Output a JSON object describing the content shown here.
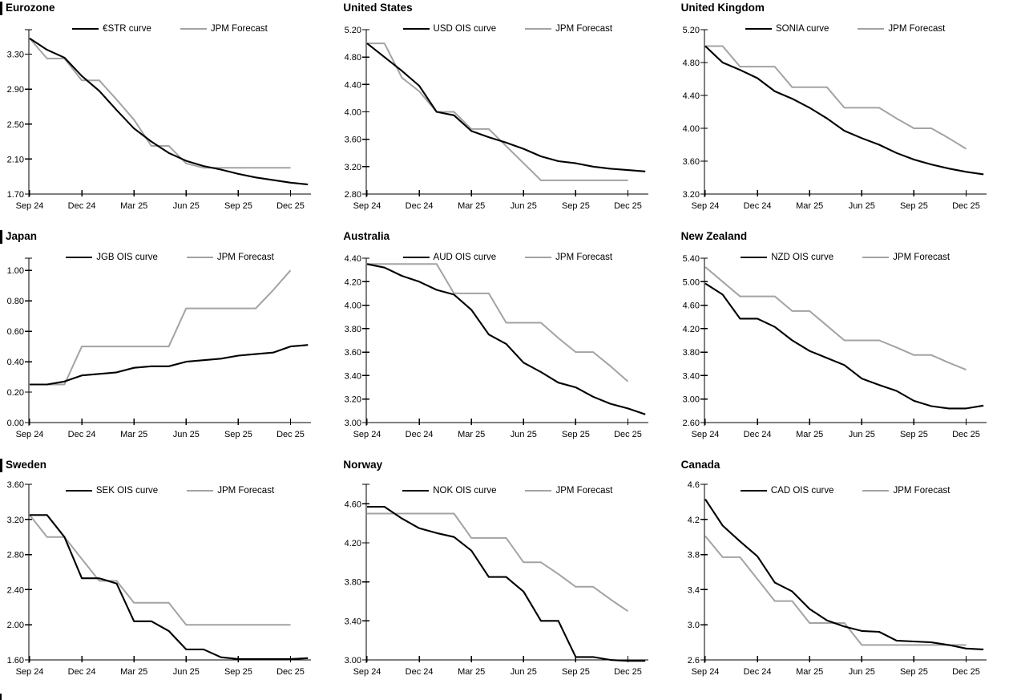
{
  "chart_data": {
    "type": "line",
    "x_tick_labels": [
      "Sep 24",
      "Dec 24",
      "Mar 25",
      "Jun 25",
      "Sep 25",
      "Dec 25"
    ],
    "forecast_label": "JPM Forecast",
    "colors": {
      "ois_line": "#000000",
      "forecast_line": "#a3a3a3",
      "axis": "#000000"
    },
    "legend_position": "top-center",
    "grid": "off",
    "panels": [
      {
        "title": "Eurozone",
        "ois_label": "€STR curve",
        "y_ticks": [
          1.7,
          2.1,
          2.5,
          2.9,
          3.3
        ],
        "y_decimals": 2,
        "ylim": [
          1.7,
          3.58
        ],
        "ois_values": [
          3.48,
          3.35,
          3.26,
          3.05,
          2.88,
          2.66,
          2.45,
          2.3,
          2.17,
          2.08,
          2.02,
          1.98,
          1.93,
          1.89,
          1.86,
          1.83,
          1.81
        ],
        "forecast_values": [
          3.48,
          3.25,
          3.25,
          3.0,
          3.0,
          2.78,
          2.55,
          2.25,
          2.25,
          2.05,
          2.0,
          2.0,
          2.0,
          2.0,
          2.0,
          2.0
        ]
      },
      {
        "title": "United States",
        "ois_label": "USD OIS curve",
        "y_ticks": [
          2.8,
          3.2,
          3.6,
          4.0,
          4.4,
          4.8,
          5.2
        ],
        "y_decimals": 2,
        "ylim": [
          2.8,
          5.2
        ],
        "ois_values": [
          5.0,
          4.8,
          4.6,
          4.38,
          4.0,
          3.95,
          3.72,
          3.63,
          3.55,
          3.46,
          3.35,
          3.28,
          3.25,
          3.2,
          3.17,
          3.15,
          3.13
        ],
        "forecast_values": [
          5.0,
          5.0,
          4.5,
          4.3,
          4.0,
          4.0,
          3.75,
          3.75,
          3.5,
          3.25,
          3.0,
          3.0,
          3.0,
          3.0,
          3.0,
          3.0
        ]
      },
      {
        "title": "United Kingdom",
        "ois_label": "SONIA curve",
        "y_ticks": [
          3.2,
          3.6,
          4.0,
          4.4,
          4.8,
          5.2
        ],
        "y_decimals": 2,
        "ylim": [
          3.2,
          5.2
        ],
        "ois_values": [
          5.0,
          4.8,
          4.71,
          4.61,
          4.45,
          4.36,
          4.25,
          4.12,
          3.97,
          3.88,
          3.8,
          3.7,
          3.62,
          3.56,
          3.51,
          3.47,
          3.44
        ],
        "forecast_values": [
          5.0,
          5.0,
          4.75,
          4.75,
          4.75,
          4.5,
          4.5,
          4.5,
          4.25,
          4.25,
          4.25,
          4.12,
          4.0,
          4.0,
          3.88,
          3.75
        ]
      },
      {
        "title": "Japan",
        "ois_label": "JGB OIS curve",
        "y_ticks": [
          0.0,
          0.2,
          0.4,
          0.6,
          0.8,
          1.0
        ],
        "y_decimals": 2,
        "ylim": [
          0.0,
          1.08
        ],
        "ois_values": [
          0.25,
          0.25,
          0.27,
          0.31,
          0.32,
          0.33,
          0.36,
          0.37,
          0.37,
          0.4,
          0.41,
          0.42,
          0.44,
          0.45,
          0.46,
          0.5,
          0.51
        ],
        "forecast_values": [
          0.25,
          0.25,
          0.25,
          0.5,
          0.5,
          0.5,
          0.5,
          0.5,
          0.5,
          0.75,
          0.75,
          0.75,
          0.75,
          0.75,
          0.87,
          1.0
        ]
      },
      {
        "title": "Australia",
        "ois_label": "AUD OIS curve",
        "y_ticks": [
          3.0,
          3.2,
          3.4,
          3.6,
          3.8,
          4.0,
          4.2,
          4.4
        ],
        "y_decimals": 2,
        "ylim": [
          3.0,
          4.4
        ],
        "ois_values": [
          4.35,
          4.32,
          4.25,
          4.2,
          4.13,
          4.09,
          3.96,
          3.75,
          3.67,
          3.51,
          3.43,
          3.34,
          3.3,
          3.22,
          3.16,
          3.12,
          3.07
        ],
        "forecast_values": [
          4.35,
          4.35,
          4.35,
          4.35,
          4.35,
          4.1,
          4.1,
          4.1,
          3.85,
          3.85,
          3.85,
          3.72,
          3.6,
          3.6,
          3.48,
          3.35
        ]
      },
      {
        "title": "New Zealand",
        "ois_label": "NZD OIS curve",
        "y_ticks": [
          2.6,
          3.0,
          3.4,
          3.8,
          4.2,
          4.6,
          5.0,
          5.4
        ],
        "y_decimals": 2,
        "ylim": [
          2.6,
          5.4
        ],
        "ois_values": [
          4.97,
          4.78,
          4.37,
          4.37,
          4.23,
          4.0,
          3.82,
          3.7,
          3.58,
          3.35,
          3.24,
          3.14,
          2.97,
          2.88,
          2.84,
          2.84,
          2.89
        ],
        "forecast_values": [
          5.25,
          5.0,
          4.75,
          4.75,
          4.75,
          4.5,
          4.5,
          4.25,
          4.0,
          4.0,
          4.0,
          3.88,
          3.75,
          3.75,
          3.62,
          3.5
        ]
      },
      {
        "title": "Sweden",
        "ois_label": "SEK OIS curve",
        "y_ticks": [
          1.6,
          2.0,
          2.4,
          2.8,
          3.2,
          3.6
        ],
        "y_decimals": 2,
        "ylim": [
          1.6,
          3.6
        ],
        "ois_values": [
          3.25,
          3.25,
          3.0,
          2.53,
          2.53,
          2.47,
          2.04,
          2.04,
          1.93,
          1.72,
          1.72,
          1.63,
          1.61,
          1.61,
          1.61,
          1.61,
          1.62
        ],
        "forecast_values": [
          3.25,
          3.0,
          3.0,
          2.75,
          2.5,
          2.5,
          2.25,
          2.25,
          2.25,
          2.0,
          2.0,
          2.0,
          2.0,
          2.0,
          2.0,
          2.0
        ]
      },
      {
        "title": "Norway",
        "ois_label": "NOK OIS curve",
        "y_ticks": [
          3.0,
          3.4,
          3.8,
          4.2,
          4.6
        ],
        "y_decimals": 2,
        "ylim": [
          3.0,
          4.8
        ],
        "ois_values": [
          4.57,
          4.57,
          4.45,
          4.35,
          4.3,
          4.26,
          4.12,
          3.85,
          3.85,
          3.7,
          3.4,
          3.4,
          3.03,
          3.03,
          3.0,
          2.99,
          2.99
        ],
        "forecast_values": [
          4.5,
          4.5,
          4.5,
          4.5,
          4.5,
          4.5,
          4.25,
          4.25,
          4.25,
          4.0,
          4.0,
          3.88,
          3.75,
          3.75,
          3.62,
          3.5
        ]
      },
      {
        "title": "Canada",
        "ois_label": "CAD OIS curve",
        "y_ticks": [
          2.6,
          3.0,
          3.4,
          3.8,
          4.2,
          4.6
        ],
        "y_decimals": 1,
        "ylim": [
          2.6,
          4.6
        ],
        "ois_values": [
          4.43,
          4.13,
          3.95,
          3.78,
          3.48,
          3.38,
          3.18,
          3.05,
          2.98,
          2.93,
          2.92,
          2.82,
          2.81,
          2.8,
          2.77,
          2.73,
          2.72
        ],
        "forecast_values": [
          4.01,
          3.77,
          3.77,
          3.52,
          3.27,
          3.27,
          3.02,
          3.02,
          3.02,
          2.77,
          2.77,
          2.77,
          2.77,
          2.77,
          2.77,
          2.77
        ]
      }
    ]
  }
}
